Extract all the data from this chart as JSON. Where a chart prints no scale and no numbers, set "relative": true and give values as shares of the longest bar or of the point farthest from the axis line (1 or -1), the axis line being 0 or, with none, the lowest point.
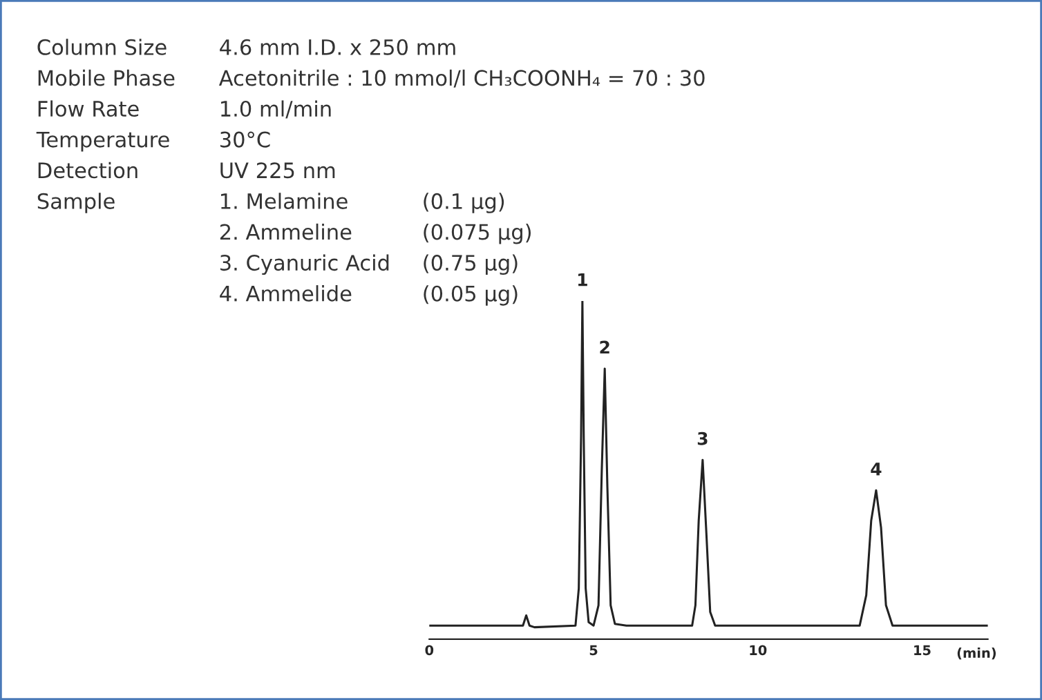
{
  "chart_data": {
    "type": "line",
    "relative": true,
    "xlabel": "(min)",
    "xlim": [
      0,
      17
    ],
    "xticks": [
      0,
      5,
      10,
      15
    ],
    "grid": false,
    "legend": false,
    "marker": "none",
    "line_style": "solid",
    "series": [
      {
        "color": "#222222",
        "x": [
          0,
          2.5,
          2.85,
          2.95,
          3.05,
          3.2,
          4.45,
          4.55,
          4.62,
          4.66,
          4.7,
          4.76,
          4.85,
          5.0,
          5.15,
          5.25,
          5.34,
          5.42,
          5.52,
          5.65,
          6.0,
          8.0,
          8.1,
          8.2,
          8.32,
          8.44,
          8.55,
          8.7,
          13.1,
          13.3,
          13.45,
          13.6,
          13.75,
          13.9,
          14.1,
          17
        ],
        "values": [
          0.04,
          0.04,
          0.04,
          0.07,
          0.04,
          0.035,
          0.04,
          0.15,
          0.6,
          1.0,
          0.6,
          0.15,
          0.05,
          0.04,
          0.1,
          0.5,
          0.8,
          0.45,
          0.1,
          0.045,
          0.04,
          0.04,
          0.1,
          0.35,
          0.53,
          0.3,
          0.08,
          0.04,
          0.04,
          0.13,
          0.35,
          0.44,
          0.33,
          0.1,
          0.04,
          0.04
        ]
      }
    ],
    "annotations": [
      "Column Size",
      "4.6 mm I.D. x 250 mm",
      "Mobile Phase",
      "Acetonitrile : 10 mmol/l CH₃COONH₄ = 70 : 30",
      "Flow Rate",
      "1.0 ml/min",
      "Temperature",
      "30°C",
      "Detection",
      "UV 225 nm",
      "Sample",
      "1. Melamine",
      "(0.1 µg)",
      "2. Ammeline",
      "(0.075 µg)",
      "3. Cyanuric Acid",
      "(0.75 µg)",
      "4. Ammelide",
      "(0.05 µg)",
      {
        "text": "1",
        "x": 4.66,
        "y": 1.0
      },
      {
        "text": "2",
        "x": 5.34,
        "y": 0.8
      },
      {
        "text": "3",
        "x": 8.32,
        "y": 0.53
      },
      {
        "text": "4",
        "x": 13.6,
        "y": 0.44
      }
    ]
  }
}
